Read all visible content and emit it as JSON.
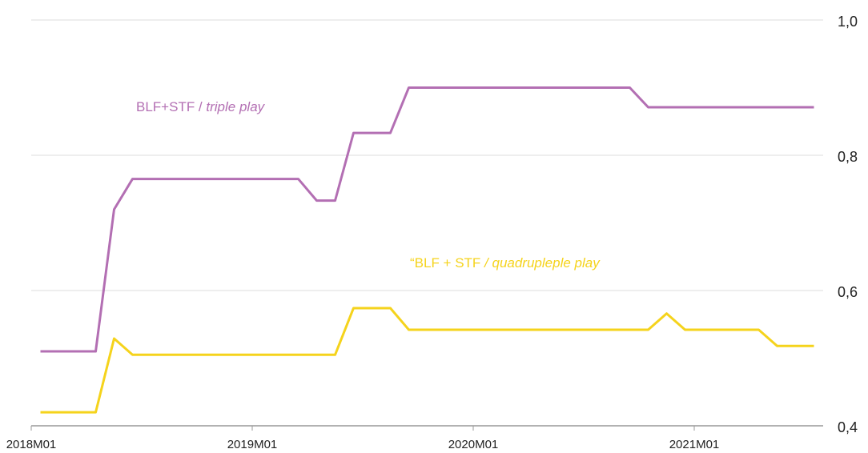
{
  "chart_data": {
    "type": "line",
    "categories": [
      "2018M01",
      null,
      null,
      null,
      null,
      null,
      null,
      null,
      null,
      null,
      null,
      null,
      "2019M01",
      null,
      null,
      null,
      null,
      null,
      null,
      null,
      null,
      null,
      null,
      null,
      "2020M01",
      null,
      null,
      null,
      null,
      null,
      null,
      null,
      null,
      null,
      null,
      null,
      "2021M01",
      null,
      null,
      null,
      null,
      null,
      null
    ],
    "series": [
      {
        "name": "BLF+STF / triple play",
        "color": "#b36fb3",
        "values": [
          0.51,
          0.51,
          0.51,
          0.51,
          0.72,
          0.765,
          0.765,
          0.765,
          0.765,
          0.765,
          0.765,
          0.765,
          0.765,
          0.765,
          0.765,
          0.733,
          0.733,
          0.833,
          0.833,
          0.833,
          0.9,
          0.9,
          0.9,
          0.9,
          0.9,
          0.9,
          0.9,
          0.9,
          0.9,
          0.9,
          0.9,
          0.9,
          0.9,
          0.871,
          0.871,
          0.871,
          0.871,
          0.871,
          0.871,
          0.871,
          0.871,
          0.871,
          0.871
        ]
      },
      {
        "name": "“BLF + STF / quadrupleple play",
        "color": "#f5d31c",
        "values": [
          0.42,
          0.42,
          0.42,
          0.42,
          0.529,
          0.505,
          0.505,
          0.505,
          0.505,
          0.505,
          0.505,
          0.505,
          0.505,
          0.505,
          0.505,
          0.505,
          0.505,
          0.574,
          0.574,
          0.574,
          0.542,
          0.542,
          0.542,
          0.542,
          0.542,
          0.542,
          0.542,
          0.542,
          0.542,
          0.542,
          0.542,
          0.542,
          0.542,
          0.542,
          0.566,
          0.542,
          0.542,
          0.542,
          0.542,
          0.542,
          0.518,
          0.518,
          0.518
        ]
      }
    ],
    "annotations": [
      {
        "text": "BLF+STF / ",
        "italic": "triple play",
        "series": 0
      },
      {
        "text": "“BLF + STF ",
        "italic": "/ quadrupleple play",
        "series": 1
      }
    ],
    "ylim": [
      0.4,
      1.0
    ],
    "yticks": [
      {
        "value": 0.4,
        "label": "0,4"
      },
      {
        "value": 0.6,
        "label": "0,6"
      },
      {
        "value": 0.8,
        "label": "0,8"
      },
      {
        "value": 1.0,
        "label": "1,0"
      }
    ],
    "grid": true
  }
}
